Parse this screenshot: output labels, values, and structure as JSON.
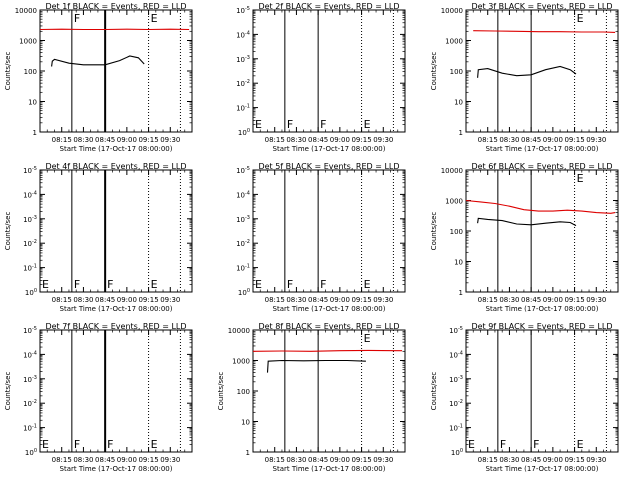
{
  "colors": {
    "background": "#ffffff",
    "axes": "#000000",
    "events": "#000000",
    "lld": "#dd0000"
  },
  "chart_data": [
    {
      "type": "line",
      "title": "Det 1f BLACK = Events, RED = LLD",
      "xlabel": "Start Time (17-Oct-17 08:00:00)",
      "ylabel": "Counts/sec",
      "xticks": [
        "08:15",
        "08:30",
        "08:45",
        "09:00",
        "09:15",
        "09:30"
      ],
      "yticks": [
        "1",
        "10",
        "100",
        "1000",
        "10000"
      ],
      "ylog_range": [
        0,
        4
      ],
      "x_range": [
        0,
        105
      ],
      "grid": false,
      "markers": [
        {
          "x": 22,
          "style": "solid",
          "label": "F"
        },
        {
          "x": 45,
          "style": "solid",
          "label": ""
        },
        {
          "x": 75,
          "style": "dotted",
          "label": "E"
        },
        {
          "x": 97,
          "style": "dotted",
          "label": ""
        }
      ],
      "thick_markers": [
        45
      ],
      "series": [
        {
          "name": "LLD",
          "color": "#dd0000",
          "x": [
            0,
            15,
            30,
            45,
            60,
            75,
            90,
            103
          ],
          "y": [
            2300,
            2350,
            2300,
            2300,
            2350,
            2300,
            2350,
            2300
          ]
        },
        {
          "name": "Events",
          "color": "#000000",
          "x": [
            8,
            8.5,
            10,
            20,
            30,
            45,
            55,
            62,
            68,
            72
          ],
          "y": [
            140,
            210,
            240,
            180,
            160,
            160,
            220,
            310,
            270,
            170
          ]
        }
      ]
    },
    {
      "type": "line",
      "title": "Det 2f BLACK = Events, RED = LLD",
      "xlabel": "Start Time (17-Oct-17 08:00:00)",
      "ylabel": "",
      "xticks": [
        "08:15",
        "08:30",
        "08:45",
        "09:00",
        "09:15",
        "09:30"
      ],
      "yticks": [
        "10^0",
        "10^-1",
        "10^-2",
        "10^-3",
        "10^-4",
        "10^-5"
      ],
      "ylog_range": [
        0,
        5
      ],
      "x_range": [
        0,
        105
      ],
      "grid": false,
      "markers": [
        {
          "x": 22,
          "style": "solid",
          "label": "F"
        },
        {
          "x": 45,
          "style": "solid",
          "label": "F"
        },
        {
          "x": 75,
          "style": "dotted",
          "label": "E"
        },
        {
          "x": 97,
          "style": "dotted",
          "label": ""
        }
      ],
      "thick_markers": [],
      "side_labels": [
        "E"
      ],
      "series": []
    },
    {
      "type": "line",
      "title": "Det 3f BLACK = Events, RED = LLD",
      "xlabel": "Start Time (17-Oct-17 08:00:00)",
      "ylabel": "Counts/sec",
      "xticks": [
        "08:15",
        "08:30",
        "08:45",
        "09:00",
        "09:15",
        "09:30"
      ],
      "yticks": [
        "1",
        "10",
        "100",
        "1000",
        "10000"
      ],
      "ylog_range": [
        0,
        4
      ],
      "x_range": [
        0,
        105
      ],
      "grid": false,
      "markers": [
        {
          "x": 22,
          "style": "solid",
          "label": ""
        },
        {
          "x": 45,
          "style": "solid",
          "label": ""
        },
        {
          "x": 75,
          "style": "dotted",
          "label": "E"
        },
        {
          "x": 97,
          "style": "dotted",
          "label": ""
        }
      ],
      "thick_markers": [],
      "series": [
        {
          "name": "LLD",
          "color": "#dd0000",
          "x": [
            5,
            20,
            35,
            50,
            65,
            80,
            95,
            103
          ],
          "y": [
            2100,
            2050,
            2000,
            1950,
            1950,
            1900,
            1900,
            1850
          ]
        },
        {
          "name": "Events",
          "color": "#000000",
          "x": [
            8,
            8.5,
            15,
            25,
            35,
            45,
            55,
            65,
            72,
            76
          ],
          "y": [
            60,
            110,
            120,
            85,
            70,
            75,
            110,
            140,
            110,
            80
          ]
        }
      ]
    },
    {
      "type": "line",
      "title": "Det 4f BLACK = Events, RED = LLD",
      "xlabel": "Start Time (17-Oct-17 08:00:00)",
      "ylabel": "Counts/sec",
      "xticks": [
        "08:15",
        "08:30",
        "08:45",
        "09:00",
        "09:15",
        "09:30"
      ],
      "yticks": [
        "10^0",
        "10^-1",
        "10^-2",
        "10^-3",
        "10^-4",
        "10^-5"
      ],
      "ylog_range": [
        0,
        5
      ],
      "x_range": [
        0,
        105
      ],
      "grid": false,
      "markers": [
        {
          "x": 22,
          "style": "solid",
          "label": "F"
        },
        {
          "x": 45,
          "style": "solid",
          "label": "F"
        },
        {
          "x": 75,
          "style": "dotted",
          "label": "E"
        },
        {
          "x": 97,
          "style": "dotted",
          "label": ""
        }
      ],
      "thick_markers": [
        45
      ],
      "side_labels": [
        "E"
      ],
      "series": []
    },
    {
      "type": "line",
      "title": "Det 5f BLACK = Events, RED = LLD",
      "xlabel": "Start Time (17-Oct-17 08:00:00)",
      "ylabel": "",
      "xticks": [
        "08:15",
        "08:30",
        "08:45",
        "09:00",
        "09:15",
        "09:30"
      ],
      "yticks": [
        "10^0",
        "10^-1",
        "10^-2",
        "10^-3",
        "10^-4",
        "10^-5"
      ],
      "ylog_range": [
        0,
        5
      ],
      "x_range": [
        0,
        105
      ],
      "grid": false,
      "markers": [
        {
          "x": 22,
          "style": "solid",
          "label": "F"
        },
        {
          "x": 45,
          "style": "solid",
          "label": "F"
        },
        {
          "x": 75,
          "style": "dotted",
          "label": "E"
        },
        {
          "x": 97,
          "style": "dotted",
          "label": ""
        }
      ],
      "thick_markers": [],
      "side_labels": [
        "E"
      ],
      "series": []
    },
    {
      "type": "line",
      "title": "Det 6f BLACK = Events, RED = LLD",
      "xlabel": "Start Time (17-Oct-17 08:00:00)",
      "ylabel": "Counts/sec",
      "xticks": [
        "08:15",
        "08:30",
        "08:45",
        "09:00",
        "09:15",
        "09:30"
      ],
      "yticks": [
        "1",
        "10",
        "100",
        "1000",
        "10000"
      ],
      "ylog_range": [
        0,
        4
      ],
      "x_range": [
        0,
        105
      ],
      "grid": false,
      "markers": [
        {
          "x": 22,
          "style": "solid",
          "label": ""
        },
        {
          "x": 45,
          "style": "solid",
          "label": ""
        },
        {
          "x": 75,
          "style": "dotted",
          "label": "E"
        },
        {
          "x": 97,
          "style": "dotted",
          "label": ""
        }
      ],
      "thick_markers": [],
      "series": [
        {
          "name": "LLD",
          "color": "#dd0000",
          "x": [
            0,
            10,
            20,
            30,
            40,
            50,
            60,
            70,
            80,
            90,
            100,
            103
          ],
          "y": [
            1000,
            900,
            800,
            650,
            500,
            450,
            450,
            480,
            450,
            400,
            380,
            400
          ]
        },
        {
          "name": "Events",
          "color": "#000000",
          "x": [
            8,
            8.5,
            15,
            25,
            35,
            45,
            55,
            65,
            72,
            76
          ],
          "y": [
            180,
            260,
            240,
            220,
            170,
            160,
            180,
            200,
            190,
            150
          ]
        }
      ]
    },
    {
      "type": "line",
      "title": "Det 7f BLACK = Events, RED = LLD",
      "xlabel": "Start Time (17-Oct-17 08:00:00)",
      "ylabel": "Counts/sec",
      "xticks": [
        "08:15",
        "08:30",
        "08:45",
        "09:00",
        "09:15",
        "09:30"
      ],
      "yticks": [
        "10^0",
        "10^-1",
        "10^-2",
        "10^-3",
        "10^-4",
        "10^-5"
      ],
      "ylog_range": [
        0,
        5
      ],
      "x_range": [
        0,
        105
      ],
      "grid": false,
      "markers": [
        {
          "x": 22,
          "style": "solid",
          "label": "F"
        },
        {
          "x": 45,
          "style": "solid",
          "label": "F"
        },
        {
          "x": 75,
          "style": "dotted",
          "label": "E"
        },
        {
          "x": 97,
          "style": "dotted",
          "label": ""
        }
      ],
      "thick_markers": [
        45
      ],
      "side_labels": [
        "E"
      ],
      "series": []
    },
    {
      "type": "line",
      "title": "Det 8f BLACK = Events, RED = LLD",
      "xlabel": "Start Time (17-Oct-17 08:00:00)",
      "ylabel": "Counts/sec",
      "xticks": [
        "08:15",
        "08:30",
        "08:45",
        "09:00",
        "09:15",
        "09:30"
      ],
      "yticks": [
        "1",
        "10",
        "100",
        "1000",
        "10000"
      ],
      "ylog_range": [
        0,
        4
      ],
      "x_range": [
        0,
        105
      ],
      "grid": false,
      "markers": [
        {
          "x": 22,
          "style": "solid",
          "label": ""
        },
        {
          "x": 45,
          "style": "solid",
          "label": ""
        },
        {
          "x": 75,
          "style": "dotted",
          "label": "E"
        },
        {
          "x": 97,
          "style": "dotted",
          "label": ""
        }
      ],
      "thick_markers": [],
      "series": [
        {
          "name": "LLD",
          "color": "#dd0000",
          "x": [
            0,
            20,
            40,
            60,
            80,
            100,
            103
          ],
          "y": [
            2000,
            2050,
            2000,
            2100,
            2150,
            2100,
            2100
          ]
        },
        {
          "name": "Events",
          "color": "#000000",
          "x": [
            10,
            10.5,
            20,
            35,
            50,
            65,
            78
          ],
          "y": [
            400,
            950,
            1000,
            980,
            1000,
            1000,
            950
          ]
        }
      ]
    },
    {
      "type": "line",
      "title": "Det 9f BLACK = Events, RED = LLD",
      "xlabel": "Start Time (17-Oct-17 08:00:00)",
      "ylabel": "Counts/sec",
      "xticks": [
        "08:15",
        "08:30",
        "08:45",
        "09:00",
        "09:15",
        "09:30"
      ],
      "yticks": [
        "10^0",
        "10^-1",
        "10^-2",
        "10^-3",
        "10^-4",
        "10^-5"
      ],
      "ylog_range": [
        0,
        5
      ],
      "x_range": [
        0,
        105
      ],
      "grid": false,
      "markers": [
        {
          "x": 22,
          "style": "solid",
          "label": "F"
        },
        {
          "x": 45,
          "style": "solid",
          "label": "F"
        },
        {
          "x": 75,
          "style": "dotted",
          "label": "E"
        },
        {
          "x": 97,
          "style": "dotted",
          "label": ""
        }
      ],
      "thick_markers": [],
      "side_labels": [
        "E"
      ],
      "series": []
    }
  ]
}
